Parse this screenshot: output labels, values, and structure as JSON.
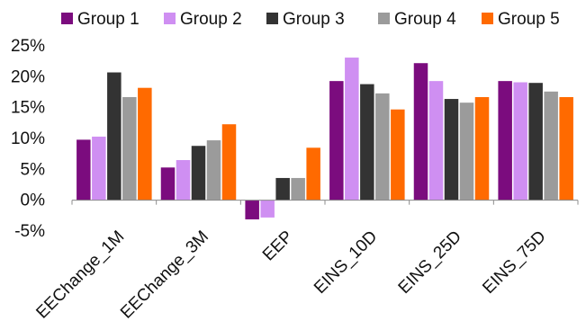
{
  "chart_data": {
    "type": "bar",
    "title": "",
    "xlabel": "",
    "ylabel": "",
    "categories": [
      "EEChange_1M",
      "EEChange_3M",
      "EEP",
      "EINS_10D",
      "EINS_25D",
      "EINS_75D"
    ],
    "ylim": [
      -0.05,
      0.25
    ],
    "yticks": [
      -0.05,
      0,
      0.05,
      0.1,
      0.15,
      0.2,
      0.25
    ],
    "ytick_labels": [
      "-5%",
      "0%",
      "5%",
      "10%",
      "15%",
      "20%",
      "25%"
    ],
    "legend_position": "top",
    "grid": false,
    "series": [
      {
        "name": "Group 1",
        "color": "#7B0C7E",
        "values": [
          0.098,
          0.053,
          -0.031,
          0.193,
          0.222,
          0.193
        ]
      },
      {
        "name": "Group 2",
        "color": "#CF8FF2",
        "values": [
          0.103,
          0.065,
          -0.028,
          0.231,
          0.193,
          0.191
        ]
      },
      {
        "name": "Group 3",
        "color": "#333333",
        "values": [
          0.207,
          0.088,
          0.036,
          0.188,
          0.164,
          0.19
        ]
      },
      {
        "name": "Group 4",
        "color": "#9B9B9B",
        "values": [
          0.167,
          0.097,
          0.036,
          0.173,
          0.158,
          0.176
        ]
      },
      {
        "name": "Group 5",
        "color": "#FF6A00",
        "values": [
          0.182,
          0.123,
          0.085,
          0.147,
          0.167,
          0.167
        ]
      }
    ]
  }
}
